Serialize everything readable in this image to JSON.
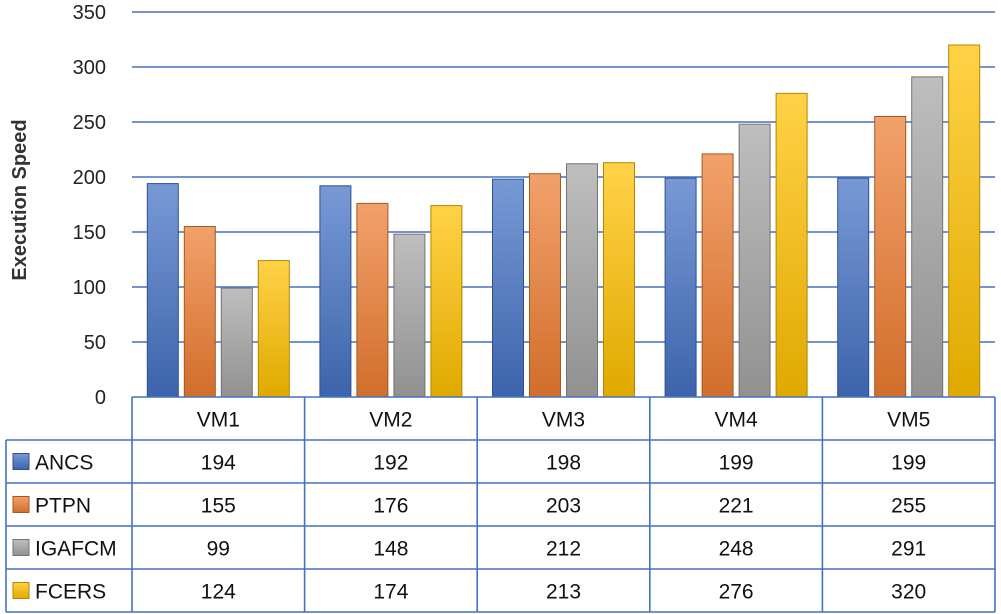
{
  "chart_data": {
    "type": "bar",
    "categories": [
      "VM1",
      "VM2",
      "VM3",
      "VM4",
      "VM5"
    ],
    "series": [
      {
        "name": "ANCS",
        "values": [
          194,
          192,
          198,
          199,
          199
        ],
        "color": "#4472C4"
      },
      {
        "name": "PTPN",
        "values": [
          155,
          176,
          203,
          221,
          255
        ],
        "color": "#ED7D31"
      },
      {
        "name": "IGAFCM",
        "values": [
          99,
          148,
          212,
          248,
          291
        ],
        "color": "#A5A5A5"
      },
      {
        "name": "FCERS",
        "values": [
          124,
          174,
          213,
          276,
          320
        ],
        "color": "#FFC000"
      }
    ],
    "ylabel": "Execution Speed",
    "ylim": [
      0,
      350
    ],
    "yticks": [
      0,
      50,
      100,
      150,
      200,
      250,
      300,
      350
    ],
    "grid": true,
    "legend": "data-table"
  },
  "colors": {
    "gridline": "#4472C4",
    "table_border": "#4472C4"
  }
}
